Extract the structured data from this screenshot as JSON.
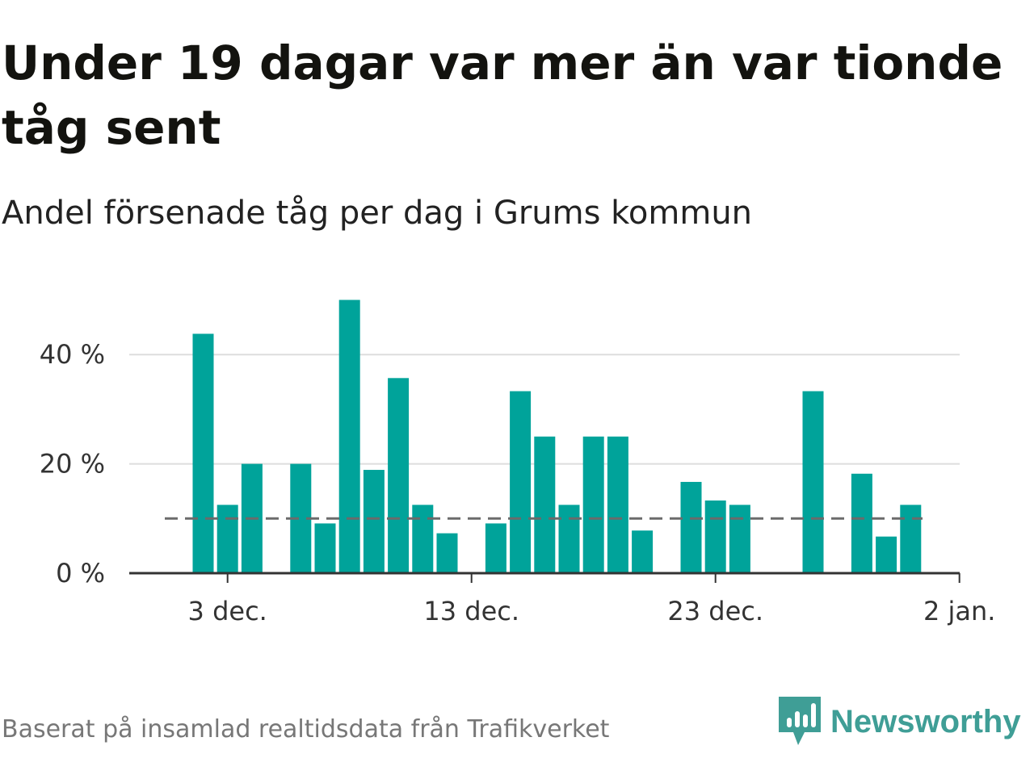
{
  "chart_data": {
    "type": "bar",
    "title": "Under 19 dagar var mer än var tionde tåg sent",
    "subtitle": "Andel försenade tåg per dag i Grums kommun",
    "x": [
      "2 dec.",
      "3 dec.",
      "4 dec.",
      "5 dec.",
      "6 dec.",
      "7 dec.",
      "8 dec.",
      "9 dec.",
      "10 dec.",
      "11 dec.",
      "12 dec.",
      "13 dec.",
      "14 dec.",
      "15 dec.",
      "16 dec.",
      "17 dec.",
      "18 dec.",
      "19 dec.",
      "20 dec.",
      "21 dec.",
      "22 dec.",
      "23 dec.",
      "24 dec.",
      "25 dec.",
      "26 dec.",
      "27 dec.",
      "28 dec.",
      "29 dec.",
      "30 dec.",
      "31 dec.",
      "1 jan."
    ],
    "values": [
      43.8,
      12.5,
      20.0,
      null,
      20.0,
      9.1,
      50.0,
      18.9,
      35.7,
      12.5,
      7.3,
      null,
      9.1,
      33.3,
      25.0,
      12.5,
      25.0,
      25.0,
      7.8,
      null,
      16.7,
      13.3,
      12.5,
      null,
      null,
      33.3,
      null,
      18.2,
      6.7,
      12.5,
      null
    ],
    "x_ticks": [
      "3 dec.",
      "13 dec.",
      "23 dec.",
      "2 jan."
    ],
    "y_ticks": [
      0,
      20,
      40
    ],
    "y_tick_labels": [
      "0 %",
      "20 %",
      "40 %"
    ],
    "ylim": [
      0,
      52
    ],
    "reference_line": 10,
    "bar_color": "#00a39a",
    "reference_color": "#6b6b6b",
    "grid": true
  },
  "footer": {
    "source": "Baserat på insamlad realtidsdata från Trafikverket",
    "brand_name": "Newsworthy",
    "brand_color": "#3f9e96",
    "brand_icon": "newsworthy-logo-icon"
  }
}
